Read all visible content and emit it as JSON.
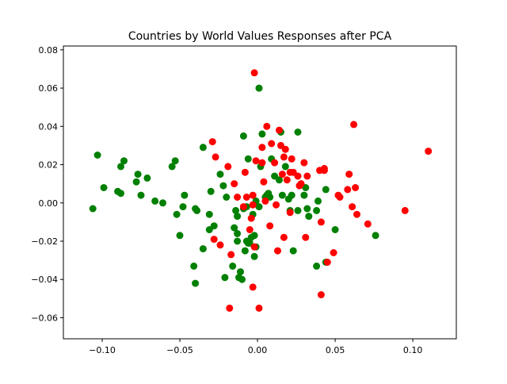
{
  "chart_data": {
    "type": "scatter",
    "title": "Countries by World Values Responses after PCA",
    "xlabel": "",
    "ylabel": "",
    "xlim": [
      -0.125,
      0.128
    ],
    "ylim": [
      -0.071,
      0.082
    ],
    "x_ticks": [
      -0.1,
      -0.05,
      0.0,
      0.05,
      0.1
    ],
    "x_tick_labels": [
      "−0.10",
      "−0.05",
      "0.00",
      "0.05",
      "0.10"
    ],
    "y_ticks": [
      -0.06,
      -0.04,
      -0.02,
      0.0,
      0.02,
      0.04,
      0.06,
      0.08
    ],
    "y_tick_labels": [
      "−0.06",
      "−0.04",
      "−0.02",
      "0.00",
      "0.02",
      "0.04",
      "0.06",
      "0.08"
    ],
    "grid": false,
    "legend": "none",
    "series": [
      {
        "color": "#008000",
        "points": [
          [
            -0.106,
            -0.003
          ],
          [
            -0.103,
            0.025
          ],
          [
            -0.099,
            0.008
          ],
          [
            -0.09,
            0.006
          ],
          [
            -0.088,
            0.005
          ],
          [
            -0.088,
            0.019
          ],
          [
            -0.086,
            0.022
          ],
          [
            -0.078,
            0.011
          ],
          [
            -0.077,
            0.015
          ],
          [
            -0.075,
            0.004
          ],
          [
            -0.071,
            0.013
          ],
          [
            -0.066,
            0.001
          ],
          [
            -0.061,
            0.0
          ],
          [
            -0.055,
            0.019
          ],
          [
            -0.053,
            0.022
          ],
          [
            -0.052,
            -0.006
          ],
          [
            -0.05,
            -0.017
          ],
          [
            -0.048,
            -0.002
          ],
          [
            -0.047,
            0.004
          ],
          [
            -0.041,
            -0.033
          ],
          [
            -0.04,
            -0.042
          ],
          [
            -0.04,
            -0.003
          ],
          [
            -0.039,
            -0.004
          ],
          [
            -0.035,
            0.029
          ],
          [
            -0.035,
            -0.024
          ],
          [
            -0.031,
            -0.006
          ],
          [
            -0.031,
            -0.014
          ],
          [
            -0.03,
            0.006
          ],
          [
            -0.028,
            -0.012
          ],
          [
            -0.024,
            0.015
          ],
          [
            -0.022,
            0.009
          ],
          [
            -0.021,
            -0.039
          ],
          [
            -0.02,
            0.003
          ],
          [
            -0.016,
            -0.033
          ],
          [
            -0.015,
            -0.013
          ],
          [
            -0.014,
            -0.004
          ],
          [
            -0.013,
            -0.007
          ],
          [
            -0.013,
            -0.016
          ],
          [
            -0.013,
            -0.02
          ],
          [
            -0.012,
            -0.039
          ],
          [
            -0.011,
            -0.036
          ],
          [
            -0.01,
            -0.04
          ],
          [
            -0.009,
            -0.003
          ],
          [
            -0.009,
            0.035
          ],
          [
            -0.008,
            -0.025
          ],
          [
            -0.007,
            -0.02
          ],
          [
            -0.007,
            -0.002
          ],
          [
            -0.006,
            0.023
          ],
          [
            -0.006,
            -0.021
          ],
          [
            -0.005,
            -0.021
          ],
          [
            -0.004,
            -0.018
          ],
          [
            -0.003,
            -0.006
          ],
          [
            -0.002,
            -0.017
          ],
          [
            -0.002,
            -0.028
          ],
          [
            -0.001,
            0.001
          ],
          [
            -0.001,
            -0.023
          ],
          [
            0.001,
            -0.002
          ],
          [
            0.001,
            0.06
          ],
          [
            0.002,
            0.019
          ],
          [
            0.003,
            0.036
          ],
          [
            0.005,
            0.003
          ],
          [
            0.006,
            0.004
          ],
          [
            0.007,
            0.005
          ],
          [
            0.008,
            0.003
          ],
          [
            0.009,
            0.023
          ],
          [
            0.011,
            0.014
          ],
          [
            0.014,
            0.012
          ],
          [
            0.015,
            0.037
          ],
          [
            0.016,
            0.004
          ],
          [
            0.018,
            0.019
          ],
          [
            0.02,
            0.002
          ],
          [
            0.021,
            -0.004
          ],
          [
            0.022,
            0.004
          ],
          [
            0.023,
            -0.025
          ],
          [
            0.026,
            0.037
          ],
          [
            0.026,
            -0.004
          ],
          [
            0.03,
            0.004
          ],
          [
            0.031,
            0.008
          ],
          [
            0.032,
            -0.003
          ],
          [
            0.033,
            -0.007
          ],
          [
            0.038,
            -0.033
          ],
          [
            0.038,
            -0.004
          ],
          [
            0.039,
            0.001
          ],
          [
            0.044,
            -0.031
          ],
          [
            0.044,
            0.007
          ],
          [
            0.05,
            -0.014
          ],
          [
            0.076,
            -0.017
          ]
        ]
      },
      {
        "color": "#ff0000",
        "points": [
          [
            -0.029,
            0.032
          ],
          [
            -0.028,
            -0.019
          ],
          [
            -0.027,
            0.024
          ],
          [
            -0.024,
            -0.022
          ],
          [
            -0.019,
            0.019
          ],
          [
            -0.018,
            -0.055
          ],
          [
            -0.017,
            -0.027
          ],
          [
            -0.015,
            0.01
          ],
          [
            -0.013,
            0.003
          ],
          [
            -0.009,
            -0.002
          ],
          [
            -0.008,
            0.016
          ],
          [
            -0.007,
            0.003
          ],
          [
            -0.005,
            -0.014
          ],
          [
            -0.004,
            -0.008
          ],
          [
            -0.003,
            0.004
          ],
          [
            -0.003,
            -0.044
          ],
          [
            -0.003,
            -0.001
          ],
          [
            -0.002,
            -0.023
          ],
          [
            -0.002,
            0.068
          ],
          [
            -0.001,
            0.022
          ],
          [
            0.001,
            -0.055
          ],
          [
            0.003,
            0.021
          ],
          [
            0.003,
            0.029
          ],
          [
            0.004,
            0.011
          ],
          [
            0.005,
            0.001
          ],
          [
            0.006,
            0.04
          ],
          [
            0.008,
            -0.012
          ],
          [
            0.009,
            0.031
          ],
          [
            0.011,
            0.021
          ],
          [
            0.012,
            -0.001
          ],
          [
            0.013,
            -0.025
          ],
          [
            0.014,
            0.038
          ],
          [
            0.015,
            0.03
          ],
          [
            0.016,
            0.015
          ],
          [
            0.017,
            0.024
          ],
          [
            0.017,
            -0.018
          ],
          [
            0.018,
            0.028
          ],
          [
            0.019,
            0.012
          ],
          [
            0.021,
            -0.005
          ],
          [
            0.021,
            0.016
          ],
          [
            0.022,
            0.023
          ],
          [
            0.023,
            0.016
          ],
          [
            0.026,
            0.014
          ],
          [
            0.027,
            0.009
          ],
          [
            0.028,
            0.01
          ],
          [
            0.03,
            0.021
          ],
          [
            0.031,
            -0.018
          ],
          [
            0.032,
            0.014
          ],
          [
            0.04,
            0.017
          ],
          [
            0.041,
            -0.048
          ],
          [
            0.041,
            -0.01
          ],
          [
            0.043,
            0.017
          ],
          [
            0.043,
            0.018
          ],
          [
            0.045,
            -0.031
          ],
          [
            0.049,
            -0.026
          ],
          [
            0.052,
            0.004
          ],
          [
            0.053,
            0.003
          ],
          [
            0.058,
            0.007
          ],
          [
            0.059,
            0.015
          ],
          [
            0.061,
            -0.002
          ],
          [
            0.062,
            0.041
          ],
          [
            0.063,
            0.008
          ],
          [
            0.064,
            -0.006
          ],
          [
            0.071,
            -0.011
          ],
          [
            0.095,
            -0.004
          ],
          [
            0.11,
            0.027
          ]
        ]
      }
    ]
  }
}
